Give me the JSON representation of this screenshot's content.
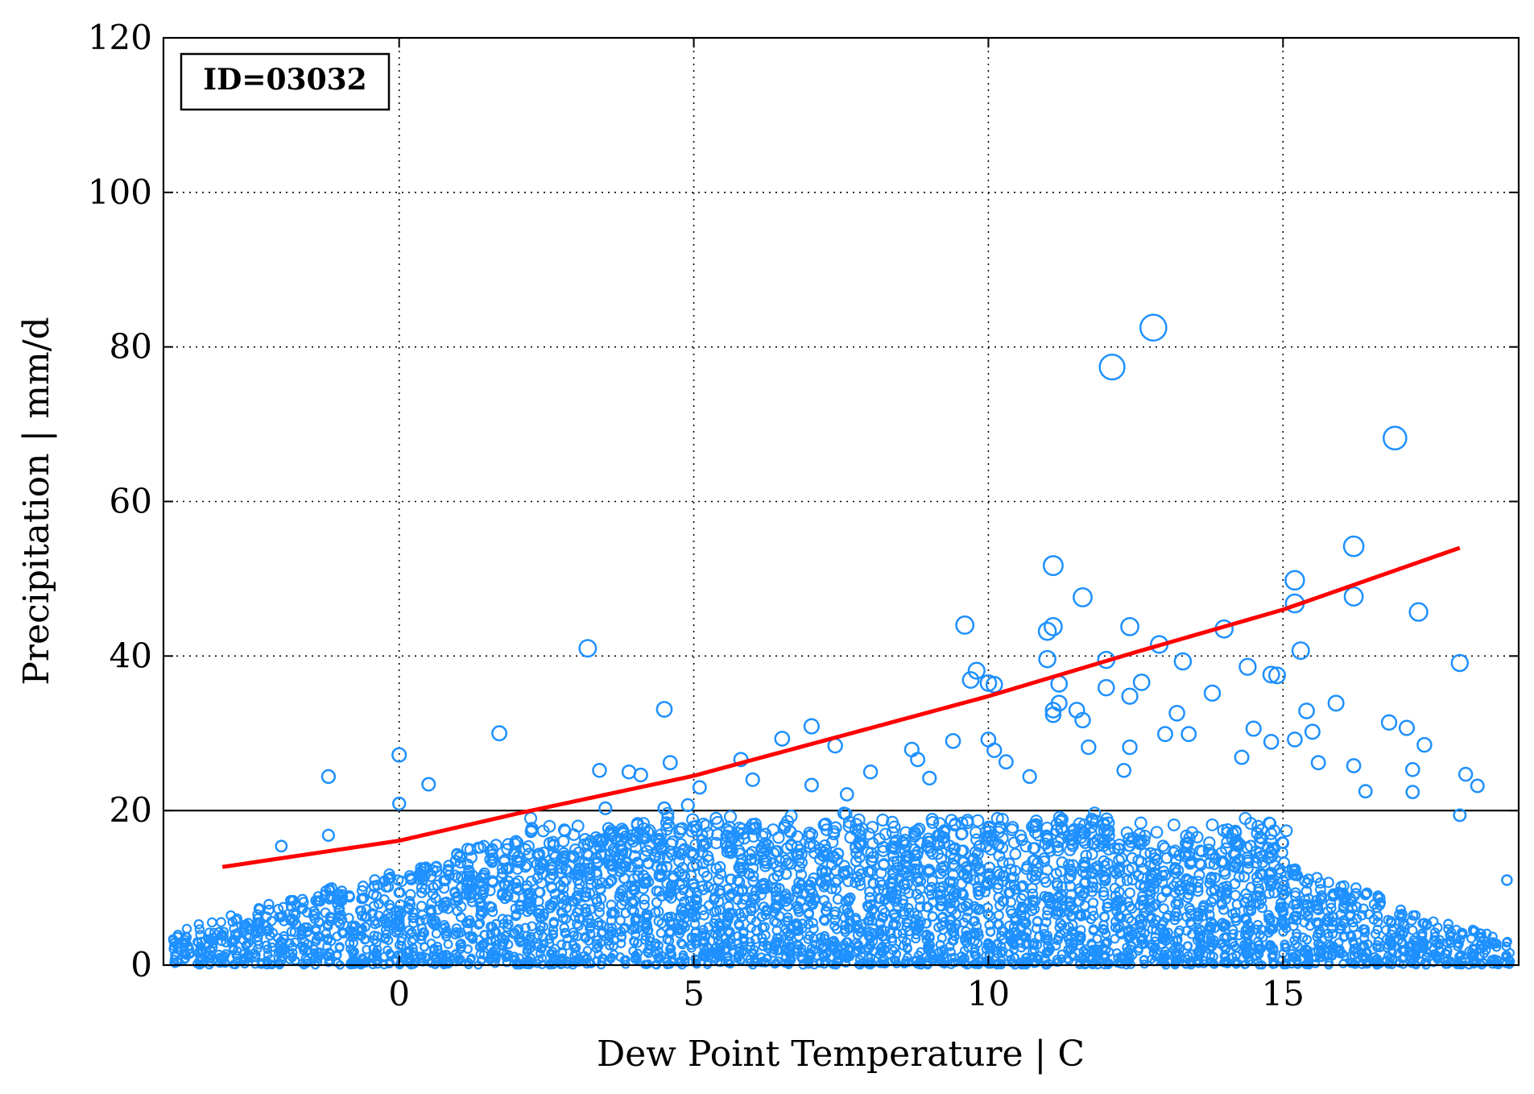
{
  "chart_data": {
    "type": "scatter",
    "title": "",
    "annotation": "ID=03032",
    "xlabel": "Dew Point Temperature | C",
    "ylabel": "Precipitation | mm/d",
    "xlim": [
      -4.0,
      19.0
    ],
    "ylim": [
      0,
      120
    ],
    "xticks": [
      0,
      5,
      10,
      15
    ],
    "xtick_labels": [
      "0",
      "5",
      "10",
      "15"
    ],
    "yticks": [
      0,
      20,
      40,
      60,
      80,
      100,
      120
    ],
    "ytick_labels": [
      "0",
      "20",
      "40",
      "60",
      "80",
      "100",
      "120"
    ],
    "grid": true,
    "reference_line_y": 20,
    "colors": {
      "points": "#1e90ff",
      "fit_line": "#ff0000",
      "axes": "#000000"
    },
    "fit_curve": {
      "x": [
        -3.0,
        0,
        2,
        5,
        10,
        12.5,
        15,
        18.0
      ],
      "y": [
        12.7,
        16.1,
        19.6,
        24.5,
        34.8,
        40.5,
        46.0,
        54.0
      ]
    },
    "highlighted_points": [
      {
        "x": 12.8,
        "y": 82.5
      },
      {
        "x": 12.1,
        "y": 77.4
      },
      {
        "x": 16.9,
        "y": 68.2
      },
      {
        "x": 16.2,
        "y": 54.2
      },
      {
        "x": 11.1,
        "y": 51.7
      },
      {
        "x": 15.2,
        "y": 49.8
      },
      {
        "x": 11.6,
        "y": 47.6
      },
      {
        "x": 16.2,
        "y": 47.7
      },
      {
        "x": 15.2,
        "y": 46.8
      },
      {
        "x": 17.3,
        "y": 45.7
      },
      {
        "x": 9.6,
        "y": 44.0
      },
      {
        "x": 11.1,
        "y": 43.8
      },
      {
        "x": 12.4,
        "y": 43.8
      },
      {
        "x": 14.0,
        "y": 43.5
      },
      {
        "x": 11.0,
        "y": 43.2
      },
      {
        "x": 12.9,
        "y": 41.5
      },
      {
        "x": 3.2,
        "y": 41.0
      },
      {
        "x": 15.3,
        "y": 40.7
      },
      {
        "x": 11.0,
        "y": 39.6
      },
      {
        "x": 12.0,
        "y": 39.5
      },
      {
        "x": 13.3,
        "y": 39.3
      },
      {
        "x": 18.0,
        "y": 39.1
      },
      {
        "x": 14.4,
        "y": 38.6
      },
      {
        "x": 9.8,
        "y": 38.1
      },
      {
        "x": 14.9,
        "y": 37.5
      },
      {
        "x": 14.8,
        "y": 37.6
      },
      {
        "x": 9.7,
        "y": 36.9
      },
      {
        "x": 10.0,
        "y": 36.5
      },
      {
        "x": 10.1,
        "y": 36.3
      },
      {
        "x": 11.2,
        "y": 36.4
      },
      {
        "x": 12.6,
        "y": 36.6
      },
      {
        "x": 12.0,
        "y": 35.9
      },
      {
        "x": 13.8,
        "y": 35.2
      },
      {
        "x": 12.4,
        "y": 34.8
      },
      {
        "x": 15.9,
        "y": 33.9
      },
      {
        "x": 11.2,
        "y": 33.9
      },
      {
        "x": 4.5,
        "y": 33.1
      },
      {
        "x": 11.1,
        "y": 33.0
      },
      {
        "x": 11.1,
        "y": 32.4
      },
      {
        "x": 13.2,
        "y": 32.6
      },
      {
        "x": 15.4,
        "y": 32.9
      },
      {
        "x": 11.5,
        "y": 33.0
      },
      {
        "x": 11.6,
        "y": 31.7
      },
      {
        "x": 16.8,
        "y": 31.4
      },
      {
        "x": 17.1,
        "y": 30.7
      },
      {
        "x": 7.0,
        "y": 30.9
      },
      {
        "x": 14.5,
        "y": 30.6
      },
      {
        "x": 15.5,
        "y": 30.2
      },
      {
        "x": 1.7,
        "y": 30.0
      },
      {
        "x": 13.0,
        "y": 29.9
      },
      {
        "x": 13.4,
        "y": 29.9
      },
      {
        "x": 15.2,
        "y": 29.2
      },
      {
        "x": 6.5,
        "y": 29.3
      },
      {
        "x": 10.0,
        "y": 29.2
      },
      {
        "x": 9.4,
        "y": 29.0
      },
      {
        "x": 14.8,
        "y": 28.9
      },
      {
        "x": 7.4,
        "y": 28.4
      },
      {
        "x": 12.4,
        "y": 28.2
      },
      {
        "x": 11.7,
        "y": 28.2
      },
      {
        "x": 17.4,
        "y": 28.5
      },
      {
        "x": 10.1,
        "y": 27.8
      },
      {
        "x": 8.7,
        "y": 27.9
      },
      {
        "x": 0.0,
        "y": 27.2
      },
      {
        "x": 8.8,
        "y": 26.6
      },
      {
        "x": 5.8,
        "y": 26.6
      },
      {
        "x": 4.6,
        "y": 26.2
      },
      {
        "x": 10.3,
        "y": 26.3
      },
      {
        "x": 14.3,
        "y": 26.9
      },
      {
        "x": 15.6,
        "y": 26.2
      },
      {
        "x": 16.2,
        "y": 25.8
      },
      {
        "x": 3.4,
        "y": 25.2
      },
      {
        "x": 3.9,
        "y": 25.0
      },
      {
        "x": 8.0,
        "y": 25.0
      },
      {
        "x": 12.3,
        "y": 25.2
      },
      {
        "x": 17.2,
        "y": 25.3
      },
      {
        "x": 18.1,
        "y": 24.7
      },
      {
        "x": 4.1,
        "y": 24.6
      },
      {
        "x": -1.2,
        "y": 24.4
      },
      {
        "x": 9.0,
        "y": 24.2
      },
      {
        "x": 10.7,
        "y": 24.4
      },
      {
        "x": 6.0,
        "y": 24.0
      },
      {
        "x": 18.3,
        "y": 23.2
      },
      {
        "x": 0.5,
        "y": 23.4
      },
      {
        "x": 7.0,
        "y": 23.3
      },
      {
        "x": 5.1,
        "y": 23.0
      },
      {
        "x": 17.2,
        "y": 22.4
      },
      {
        "x": 16.4,
        "y": 22.5
      },
      {
        "x": 7.6,
        "y": 22.1
      },
      {
        "x": 4.9,
        "y": 20.7
      },
      {
        "x": 0.0,
        "y": 20.9
      },
      {
        "x": 3.5,
        "y": 20.3
      },
      {
        "x": 4.5,
        "y": 20.3
      },
      {
        "x": 18.0,
        "y": 19.4
      },
      {
        "x": -1.2,
        "y": 16.8
      },
      {
        "x": -2.0,
        "y": 15.4
      },
      {
        "x": 18.8,
        "y": 11.0
      }
    ],
    "bulk_points": {
      "description_note": "",
      "n_columns_per_degree": 5,
      "x_range": [
        -3.8,
        18.9
      ],
      "y_range": [
        0,
        20
      ]
    }
  }
}
